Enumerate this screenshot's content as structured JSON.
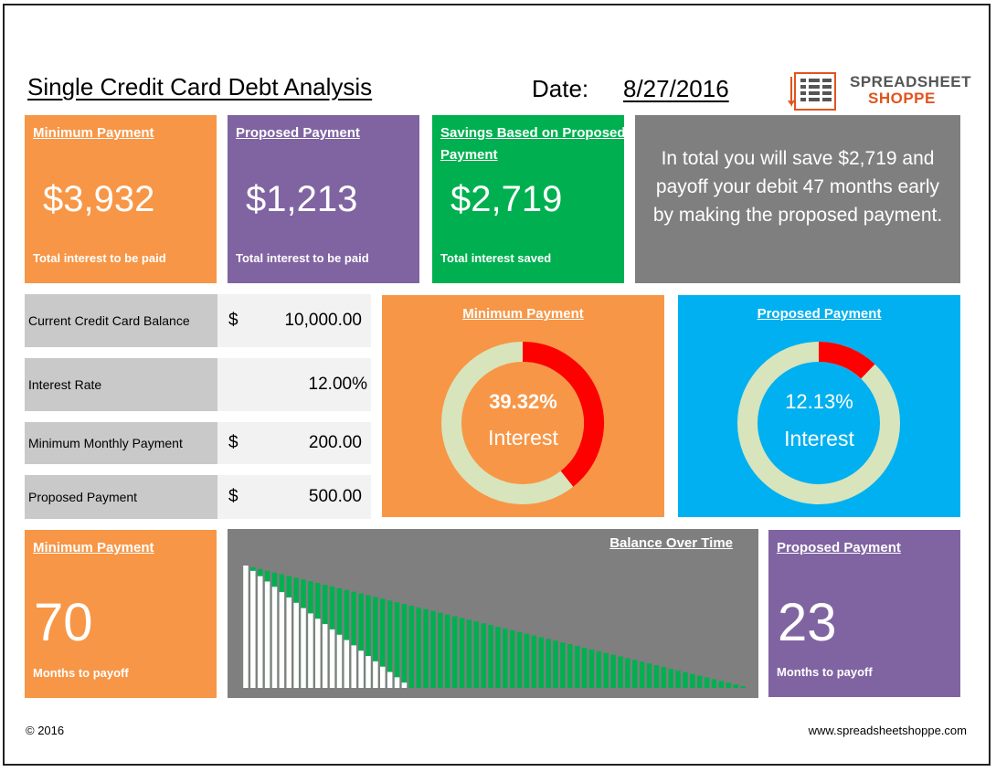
{
  "header": {
    "title": "Single Credit Card Debt Analysis",
    "date_label": "Date:",
    "date_value": "8/27/2016",
    "logo_line1": "SPREADSHEET",
    "logo_line2": "SHOPPE"
  },
  "top_cards": {
    "minimum": {
      "heading": "Minimum Payment",
      "value": "$3,932",
      "caption": "Total interest to be paid"
    },
    "proposed": {
      "heading": "Proposed Payment",
      "value": "$1,213",
      "caption": "Total interest to be paid"
    },
    "savings": {
      "heading": "Savings Based on Proposed Payment",
      "value": "$2,719",
      "caption": "Total interest saved"
    },
    "summary": "In total you will save $2,719 and payoff your debit 47 months early by making the proposed payment."
  },
  "inputs": [
    {
      "label": "Current Credit Card Balance",
      "currency": "$",
      "value": "10,000.00"
    },
    {
      "label": "Interest Rate",
      "currency": "",
      "value": "12.00%"
    },
    {
      "label": "Minimum Monthly Payment",
      "currency": "$",
      "value": "200.00"
    },
    {
      "label": "Proposed Payment",
      "currency": "$",
      "value": "500.00"
    }
  ],
  "donuts": {
    "minimum": {
      "heading": "Minimum Payment",
      "percent_text": "39.32%",
      "label": "Interest",
      "fraction": 0.3932
    },
    "proposed": {
      "heading": "Proposed Payment",
      "percent_text": "12.13%",
      "label": "Interest",
      "fraction": 0.1213
    }
  },
  "bottom": {
    "minimum": {
      "heading": "Minimum Payment",
      "value": "70",
      "caption": "Months to payoff"
    },
    "proposed": {
      "heading": "Proposed Payment",
      "value": "23",
      "caption": "Months to payoff"
    },
    "chart_title": "Balance Over Time"
  },
  "footer": {
    "copyright": "© 2016",
    "website": "www.spreadsheetshoppe.com"
  },
  "colors": {
    "orange": "#f79646",
    "purple": "#8064a2",
    "green": "#00b050",
    "gray": "#7f7f7f",
    "blue": "#00b0f0",
    "donut_track": "#d8e4bc",
    "donut_interest": "#ff0000",
    "min_series": "#00b050",
    "prop_series": "#ffffff"
  },
  "chart_data": {
    "type": "bar",
    "title": "Balance Over Time",
    "xlabel": "",
    "ylabel": "",
    "ylim": [
      0,
      10000
    ],
    "series": [
      {
        "months": 70,
        "start_balance": 10000,
        "end_balance": 0
      },
      {
        "months": 23,
        "start_balance": 10000,
        "end_balance": 0
      }
    ]
  }
}
